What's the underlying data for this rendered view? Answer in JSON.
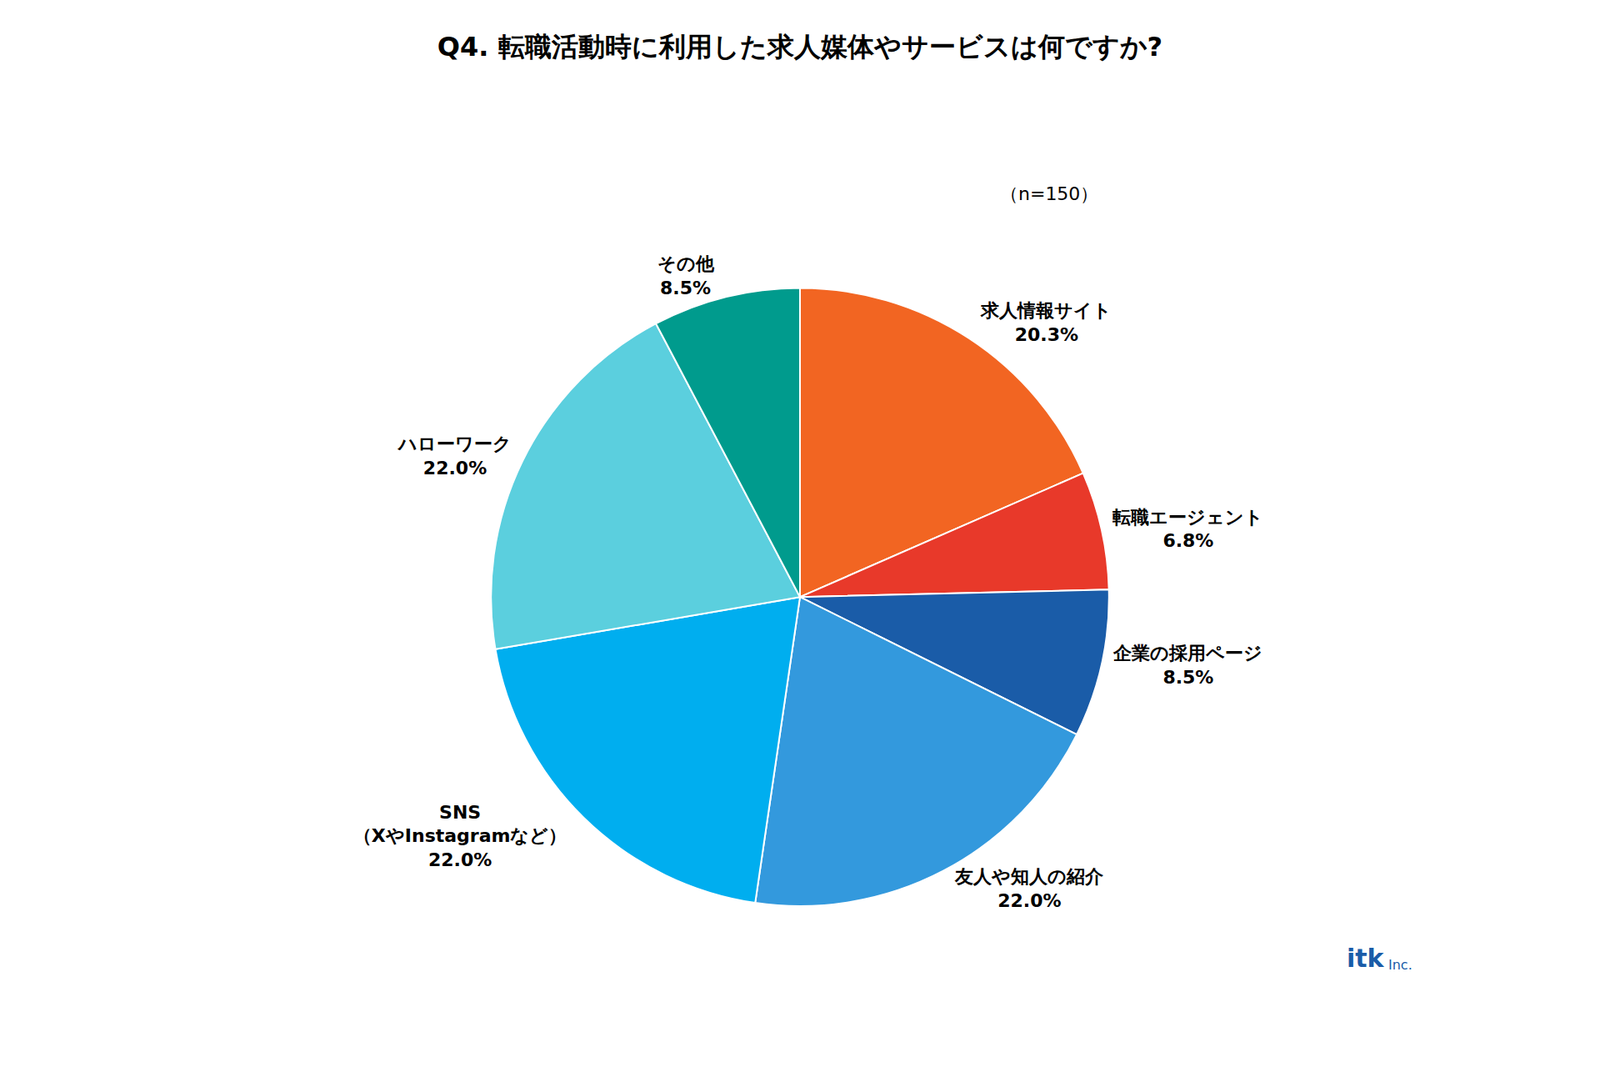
{
  "chart_data": {
    "type": "pie",
    "title": "Q4. 転職活動時に利用した求人媒体やサービスは何ですか?",
    "subtitle": "（n=150）",
    "categories": [
      "求人情報サイト",
      "転職エージェント",
      "企業の採用ページ",
      "友人や知人の紹介",
      "SNS\n（XやInstagramなど）",
      "ハローワーク",
      "その他"
    ],
    "values": [
      20.3,
      6.8,
      8.5,
      22.0,
      22.0,
      22.0,
      8.5
    ],
    "value_labels": [
      "20.3%",
      "6.8%",
      "8.5%",
      "22.0%",
      "22.0%",
      "22.0%",
      "8.5%"
    ],
    "colors": [
      "#F26522",
      "#E8392A",
      "#1A5CA8",
      "#3399DD",
      "#00AEEF",
      "#5BCFDE",
      "#009B8D"
    ],
    "data_labels": true,
    "legend": false,
    "annotations": [
      "itk",
      "Inc."
    ]
  }
}
